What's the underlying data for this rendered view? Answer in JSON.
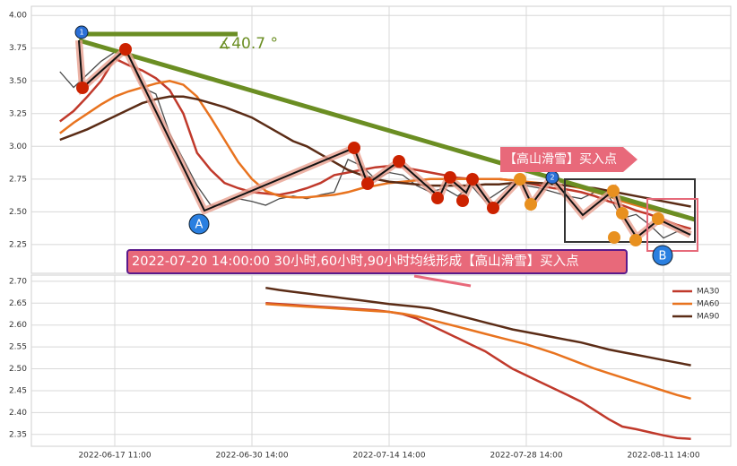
{
  "chart_data": [
    {
      "type": "line",
      "ylim": [
        2.03,
        4.07
      ],
      "yticks": [
        2.25,
        {
          "value": 2.5,
          "label": "2.50"
        },
        2.75,
        {
          "value": 3,
          "label": "3.00"
        },
        3.25,
        {
          "value": 3.5,
          "label": "3.50"
        },
        3.75,
        {
          "value": 4,
          "label": "4.00"
        }
      ],
      "grid": true,
      "annotations": [
        "∡40.7 °",
        "【高山滑雪】买入点",
        "2022-07-20 14:00:00 30小时,60小时,90小时均线形成【高山滑雪】买入点",
        "A",
        "B",
        "1",
        "2"
      ],
      "series": [
        {
          "color": "#4a4a4a",
          "values": [
            3.57,
            3.45,
            3.55,
            3.65,
            3.72,
            3.7,
            3.45,
            3.4,
            3.1,
            2.9,
            2.7,
            2.55,
            2.55,
            2.6,
            2.58,
            2.55,
            2.6,
            2.62,
            2.6,
            2.63,
            2.65,
            2.9,
            2.85,
            2.75,
            2.8,
            2.78,
            2.7,
            2.65,
            2.68,
            2.62,
            2.7,
            2.58,
            2.65,
            2.72,
            2.7,
            2.68,
            2.65,
            2.62,
            2.6,
            2.65,
            2.62,
            2.45,
            2.48,
            2.4,
            2.3,
            2.35,
            2.33
          ]
        },
        {
          "color": "#c0392b",
          "values": [
            3.19,
            3.27,
            3.38,
            3.5,
            3.67,
            3.62,
            3.58,
            3.52,
            3.43,
            3.25,
            2.95,
            2.82,
            2.72,
            2.68,
            2.65,
            2.64,
            2.63,
            2.65,
            2.68,
            2.72,
            2.78,
            2.8,
            2.82,
            2.84,
            2.85,
            2.84,
            2.82,
            2.8,
            2.78,
            2.76,
            2.75,
            2.75,
            2.75,
            2.74,
            2.72,
            2.7,
            2.68,
            2.67,
            2.65,
            2.62,
            2.58,
            2.55,
            2.51,
            2.48,
            2.44,
            2.4,
            2.37
          ]
        },
        {
          "color": "#e8731f",
          "values": [
            3.1,
            3.18,
            3.25,
            3.32,
            3.38,
            3.42,
            3.45,
            3.48,
            3.5,
            3.47,
            3.38,
            3.22,
            3.05,
            2.88,
            2.75,
            2.66,
            2.62,
            2.61,
            2.61,
            2.62,
            2.63,
            2.65,
            2.68,
            2.7,
            2.72,
            2.73,
            2.74,
            2.75,
            2.75,
            2.75,
            2.75,
            2.75,
            2.75,
            2.74,
            2.73,
            2.72,
            2.71,
            2.7,
            2.68,
            2.65,
            2.62,
            2.58,
            2.55,
            2.52,
            2.5,
            2.47,
            2.45
          ]
        },
        {
          "color": "#5b2c16",
          "values": [
            3.05,
            3.09,
            3.13,
            3.18,
            3.23,
            3.28,
            3.33,
            3.36,
            3.38,
            3.38,
            3.36,
            3.33,
            3.3,
            3.26,
            3.22,
            3.16,
            3.1,
            3.04,
            3.0,
            2.94,
            2.88,
            2.82,
            2.78,
            2.75,
            2.73,
            2.72,
            2.71,
            2.7,
            2.7,
            2.7,
            2.7,
            2.71,
            2.71,
            2.72,
            2.72,
            2.72,
            2.71,
            2.7,
            2.69,
            2.68,
            2.66,
            2.64,
            2.62,
            2.6,
            2.58,
            2.56,
            2.54
          ]
        }
      ]
    },
    {
      "type": "line",
      "categories": [
        null,
        null,
        null,
        null,
        "2022-06-17 11:00",
        null,
        null,
        null,
        null,
        null,
        null,
        null,
        null,
        null,
        "2022-06-30 14:00",
        null,
        null,
        null,
        null,
        null,
        null,
        null,
        null,
        null,
        "2022-07-14 14:00",
        null,
        null,
        null,
        null,
        null,
        null,
        null,
        null,
        null,
        "2022-07-28 14:00",
        null,
        null,
        null,
        null,
        null,
        null,
        null,
        null,
        null,
        "2022-08-11 14:00",
        null,
        null
      ],
      "ylim": [
        2.323,
        2.714
      ],
      "yticks": [
        2.35,
        {
          "value": 2.4,
          "label": "2.40"
        },
        2.45,
        {
          "value": 2.5,
          "label": "2.50"
        },
        2.55,
        {
          "value": 2.6,
          "label": "2.60"
        },
        2.65,
        {
          "value": 2.7,
          "label": "2.70"
        }
      ],
      "grid": true,
      "legend": "upper right",
      "series": [
        {
          "name": "MA30",
          "color": "#c0392b",
          "values": [
            null,
            null,
            null,
            null,
            null,
            null,
            null,
            null,
            null,
            null,
            null,
            null,
            null,
            null,
            null,
            2.65,
            2.648,
            2.646,
            2.644,
            2.642,
            2.64,
            2.638,
            2.636,
            2.634,
            2.63,
            2.625,
            2.615,
            2.6,
            2.585,
            2.57,
            2.555,
            2.54,
            2.52,
            2.5,
            2.485,
            2.47,
            2.455,
            2.44,
            2.425,
            2.405,
            2.385,
            2.368,
            2.362,
            2.355,
            2.348,
            2.342,
            2.34
          ]
        },
        {
          "name": "MA60",
          "color": "#e8731f",
          "values": [
            null,
            null,
            null,
            null,
            null,
            null,
            null,
            null,
            null,
            null,
            null,
            null,
            null,
            null,
            null,
            2.648,
            2.646,
            2.644,
            2.642,
            2.64,
            2.638,
            2.636,
            2.634,
            2.632,
            2.63,
            2.626,
            2.62,
            2.612,
            2.604,
            2.596,
            2.588,
            2.58,
            2.572,
            2.564,
            2.556,
            2.546,
            2.536,
            2.524,
            2.512,
            2.5,
            2.49,
            2.48,
            2.47,
            2.46,
            2.45,
            2.44,
            2.432
          ]
        },
        {
          "name": "MA90",
          "color": "#5b2c16",
          "values": [
            null,
            null,
            null,
            null,
            null,
            null,
            null,
            null,
            null,
            null,
            null,
            null,
            null,
            null,
            null,
            2.685,
            2.68,
            2.676,
            2.672,
            2.668,
            2.664,
            2.66,
            2.656,
            2.652,
            2.648,
            2.645,
            2.642,
            2.638,
            2.63,
            2.622,
            2.614,
            2.606,
            2.598,
            2.59,
            2.584,
            2.578,
            2.572,
            2.566,
            2.56,
            2.552,
            2.544,
            2.538,
            2.532,
            2.526,
            2.52,
            2.514,
            2.508
          ]
        }
      ]
    }
  ]
}
